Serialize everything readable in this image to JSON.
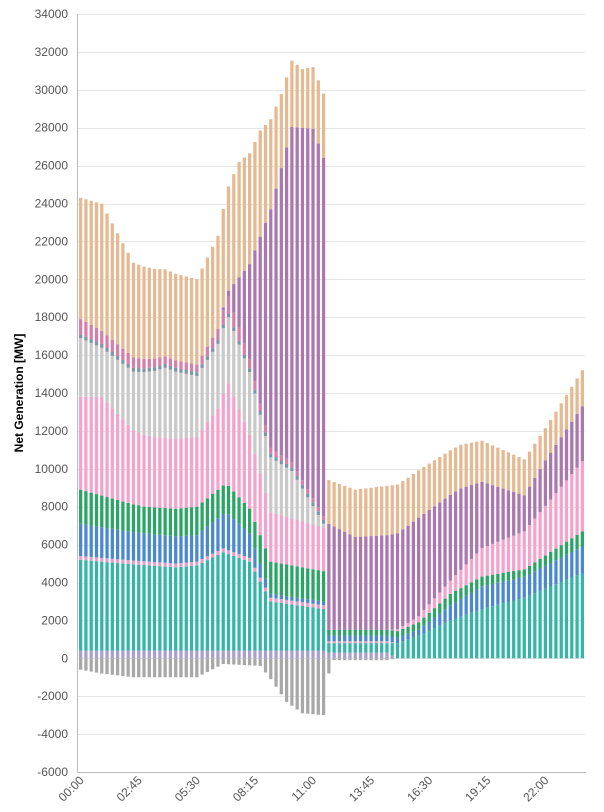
{
  "chart_data": {
    "type": "bar",
    "stacked": true,
    "title": "",
    "xlabel": "",
    "ylabel": "Net Generation [MW]",
    "ylim": [
      -6000,
      34000
    ],
    "y_ticks": [
      34000,
      32000,
      30000,
      28000,
      26000,
      24000,
      22000,
      20000,
      18000,
      16000,
      14000,
      12000,
      10000,
      8000,
      6000,
      4000,
      2000,
      0,
      -2000,
      -4000,
      -6000
    ],
    "y_tick_labels": [
      "34000",
      "32000",
      "30000",
      "28000",
      "26000",
      "24000",
      "22000",
      "20000",
      "18000",
      "16000",
      "14000",
      "12000",
      "10000",
      "8000",
      "6000",
      "4000",
      "2000",
      "0",
      "-2000",
      "-4000",
      "-6000"
    ],
    "x_tick_labels": [
      "00:00",
      "02:45",
      "05:30",
      "08:15",
      "11:00",
      "13:45",
      "16:30",
      "19:15",
      "22:00"
    ],
    "x_tick_minutes": [
      0,
      165,
      330,
      495,
      660,
      825,
      990,
      1155,
      1320
    ],
    "x_interval_minutes": 15,
    "x_count": 96,
    "grid": true,
    "legend": "none",
    "colors": {
      "negative": "#a8a8a8",
      "base_violet": "#a9a0cf",
      "teal": "#35b5a8",
      "small_pink": "#e5a2c8",
      "blue": "#4a89cf",
      "green": "#2aa565",
      "pink": "#f3a3cc",
      "silver": "#c9c9c9",
      "slate": "#7d96a8",
      "rose": "#d67fa9",
      "purple": "#aa77ae",
      "tan": "#e5b992"
    },
    "series_order": [
      "negative",
      "base_violet",
      "teal",
      "small_pink",
      "blue",
      "green",
      "pink",
      "silver",
      "slate",
      "rose",
      "purple",
      "tan"
    ],
    "knots": {
      "negative": [
        [
          0,
          -600
        ],
        [
          4,
          -800
        ],
        [
          10,
          -1000
        ],
        [
          22,
          -1000
        ],
        [
          27,
          -300
        ],
        [
          34,
          -400
        ],
        [
          36,
          -1100
        ],
        [
          39,
          -2300
        ],
        [
          42,
          -2900
        ],
        [
          46,
          -3000
        ],
        [
          47,
          -800
        ],
        [
          48,
          -100
        ],
        [
          58,
          -100
        ],
        [
          60,
          0
        ],
        [
          95,
          0
        ]
      ],
      "base_violet": [
        [
          0,
          400
        ],
        [
          46,
          400
        ],
        [
          47,
          300
        ],
        [
          58,
          300
        ],
        [
          60,
          0
        ],
        [
          95,
          0
        ]
      ],
      "teal": [
        [
          0,
          4800
        ],
        [
          8,
          4600
        ],
        [
          18,
          4400
        ],
        [
          22,
          4500
        ],
        [
          27,
          5200
        ],
        [
          32,
          4700
        ],
        [
          36,
          2600
        ],
        [
          46,
          2200
        ],
        [
          47,
          500
        ],
        [
          48,
          500
        ],
        [
          58,
          500
        ],
        [
          60,
          800
        ],
        [
          64,
          1200
        ],
        [
          70,
          2000
        ],
        [
          76,
          2600
        ],
        [
          84,
          3200
        ],
        [
          95,
          4500
        ]
      ],
      "small_pink": [
        [
          0,
          200
        ],
        [
          46,
          200
        ],
        [
          47,
          100
        ],
        [
          58,
          100
        ],
        [
          60,
          0
        ],
        [
          95,
          0
        ]
      ],
      "blue": [
        [
          0,
          1700
        ],
        [
          10,
          1500
        ],
        [
          22,
          1400
        ],
        [
          28,
          1900
        ],
        [
          32,
          1300
        ],
        [
          36,
          200
        ],
        [
          46,
          200
        ],
        [
          47,
          300
        ],
        [
          58,
          300
        ],
        [
          64,
          300
        ],
        [
          70,
          800
        ],
        [
          76,
          1200
        ],
        [
          84,
          1100
        ],
        [
          95,
          1400
        ]
      ],
      "green": [
        [
          0,
          1800
        ],
        [
          6,
          1600
        ],
        [
          12,
          1400
        ],
        [
          22,
          1500
        ],
        [
          28,
          1500
        ],
        [
          32,
          1300
        ],
        [
          36,
          1700
        ],
        [
          46,
          1600
        ],
        [
          47,
          300
        ],
        [
          58,
          300
        ],
        [
          64,
          400
        ],
        [
          70,
          600
        ],
        [
          84,
          400
        ],
        [
          95,
          800
        ]
      ],
      "pink": [
        [
          0,
          4900
        ],
        [
          4,
          5200
        ],
        [
          10,
          3900
        ],
        [
          14,
          3700
        ],
        [
          22,
          3700
        ],
        [
          26,
          4300
        ],
        [
          28,
          5400
        ],
        [
          32,
          3900
        ],
        [
          36,
          2600
        ],
        [
          46,
          2300
        ],
        [
          47,
          0
        ],
        [
          58,
          0
        ],
        [
          62,
          200
        ],
        [
          70,
          700
        ],
        [
          76,
          1500
        ],
        [
          84,
          2000
        ],
        [
          95,
          3700
        ]
      ],
      "silver": [
        [
          0,
          3100
        ],
        [
          4,
          2600
        ],
        [
          10,
          3100
        ],
        [
          16,
          3700
        ],
        [
          22,
          3200
        ],
        [
          28,
          3500
        ],
        [
          32,
          3300
        ],
        [
          36,
          2900
        ],
        [
          40,
          2500
        ],
        [
          46,
          200
        ],
        [
          47,
          0
        ],
        [
          95,
          0
        ]
      ],
      "slate": [
        [
          0,
          200
        ],
        [
          46,
          200
        ],
        [
          47,
          0
        ],
        [
          95,
          0
        ]
      ],
      "rose": [
        [
          0,
          800
        ],
        [
          8,
          600
        ],
        [
          16,
          400
        ],
        [
          22,
          400
        ],
        [
          26,
          600
        ],
        [
          28,
          900
        ],
        [
          32,
          500
        ],
        [
          36,
          300
        ],
        [
          46,
          200
        ],
        [
          47,
          0
        ],
        [
          95,
          0
        ]
      ],
      "purple": [
        [
          0,
          0
        ],
        [
          26,
          0
        ],
        [
          28,
          300
        ],
        [
          32,
          5000
        ],
        [
          36,
          12600
        ],
        [
          40,
          17700
        ],
        [
          44,
          19500
        ],
        [
          46,
          18900
        ],
        [
          47,
          5600
        ],
        [
          52,
          4900
        ],
        [
          58,
          5000
        ],
        [
          64,
          5200
        ],
        [
          72,
          4300
        ],
        [
          84,
          1900
        ],
        [
          88,
          2400
        ],
        [
          95,
          2900
        ]
      ],
      "tan": [
        [
          0,
          6400
        ],
        [
          4,
          6700
        ],
        [
          10,
          5000
        ],
        [
          16,
          4600
        ],
        [
          22,
          4500
        ],
        [
          26,
          4900
        ],
        [
          30,
          6100
        ],
        [
          34,
          5600
        ],
        [
          38,
          3900
        ],
        [
          42,
          3100
        ],
        [
          46,
          3400
        ],
        [
          47,
          2300
        ],
        [
          52,
          2500
        ],
        [
          58,
          2600
        ],
        [
          64,
          2500
        ],
        [
          72,
          2300
        ],
        [
          84,
          1900
        ],
        [
          88,
          1700
        ],
        [
          95,
          1900
        ]
      ]
    }
  }
}
